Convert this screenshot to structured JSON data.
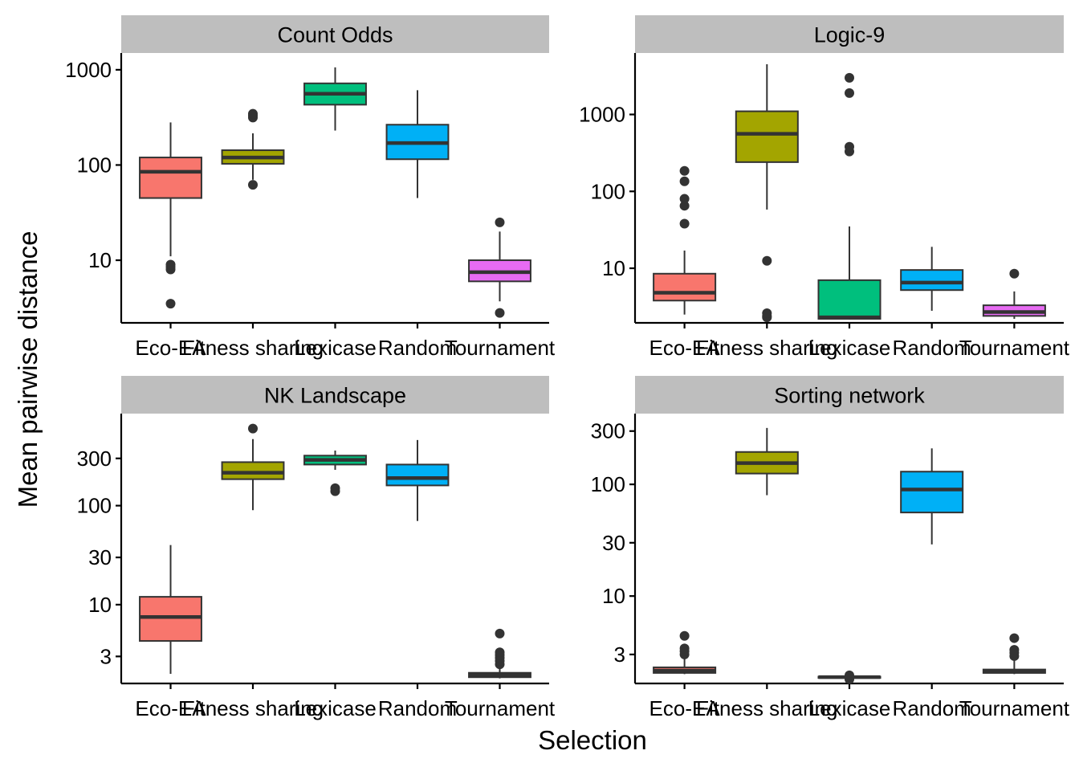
{
  "colors": {
    "Eco-EA": "#F8766D",
    "Fitness sharing": "#A3A500",
    "Lexicase": "#00BF7D",
    "Random": "#00B0F6",
    "Tournament": "#E76BF3"
  },
  "chart_data": {
    "type": "boxplot",
    "facet_layout": "2x2 grid",
    "xlabel": "Selection",
    "ylabel": "Mean pairwise distance",
    "y_scale": "log10",
    "categories": [
      "Eco-EA",
      "Fitness sharing",
      "Lexicase",
      "Random",
      "Tournament"
    ],
    "panels": [
      {
        "title": "Count Odds",
        "ylim": [
          2.2,
          1500
        ],
        "yticks": [
          10,
          100,
          1000
        ],
        "ytick_labels": [
          "10",
          "100",
          "1000"
        ],
        "boxes": [
          {
            "category": "Eco-EA",
            "whislo": 11,
            "q1": 45,
            "median": 85,
            "q3": 120,
            "whishi": 280,
            "outliers": [
              3.5,
              8,
              8.5,
              9
            ]
          },
          {
            "category": "Fitness sharing",
            "whislo": 70,
            "q1": 103,
            "median": 120,
            "q3": 143,
            "whishi": 215,
            "outliers": [
              62,
              315,
              330,
              345
            ]
          },
          {
            "category": "Lexicase",
            "whislo": 230,
            "q1": 430,
            "median": 560,
            "q3": 720,
            "whishi": 1060,
            "outliers": []
          },
          {
            "category": "Random",
            "whislo": 45,
            "q1": 115,
            "median": 170,
            "q3": 265,
            "whishi": 610,
            "outliers": []
          },
          {
            "category": "Tournament",
            "whislo": 3.7,
            "q1": 6,
            "median": 7.5,
            "q3": 10,
            "whishi": 20,
            "outliers": [
              2.8,
              25
            ]
          }
        ]
      },
      {
        "title": "Logic-9",
        "ylim": [
          1.95,
          6300
        ],
        "yticks": [
          10,
          100,
          1000
        ],
        "ytick_labels": [
          "10",
          "100",
          "1000"
        ],
        "boxes": [
          {
            "category": "Eco-EA",
            "whislo": 2.5,
            "q1": 3.8,
            "median": 4.8,
            "q3": 8.5,
            "whishi": 17,
            "outliers": [
              38,
              65,
              80,
              135,
              185
            ]
          },
          {
            "category": "Fitness sharing",
            "whislo": 58,
            "q1": 240,
            "median": 560,
            "q3": 1100,
            "whishi": 4500,
            "outliers": [
              12.5,
              2.3,
              2.4,
              2.6
            ]
          },
          {
            "category": "Lexicase",
            "whislo": 2.15,
            "q1": 2.2,
            "median": 2.3,
            "q3": 7,
            "whishi": 35,
            "outliers": [
              330,
              380,
              1900,
              3000
            ]
          },
          {
            "category": "Random",
            "whislo": 2.8,
            "q1": 5.2,
            "median": 6.5,
            "q3": 9.5,
            "whishi": 19,
            "outliers": []
          },
          {
            "category": "Tournament",
            "whislo": 2.2,
            "q1": 2.4,
            "median": 2.7,
            "q3": 3.3,
            "whishi": 5,
            "outliers": [
              8.5
            ]
          }
        ]
      },
      {
        "title": "NK Landscape",
        "ylim": [
          1.6,
          850
        ],
        "yticks": [
          3,
          10,
          30,
          100,
          300
        ],
        "ytick_labels": [
          "3",
          "10",
          "30",
          "100",
          "300"
        ],
        "boxes": [
          {
            "category": "Eco-EA",
            "whislo": 2,
            "q1": 4.3,
            "median": 7.5,
            "q3": 12,
            "whishi": 40,
            "outliers": []
          },
          {
            "category": "Fitness sharing",
            "whislo": 90,
            "q1": 185,
            "median": 215,
            "q3": 275,
            "whishi": 470,
            "outliers": [
              600
            ]
          },
          {
            "category": "Lexicase",
            "whislo": 230,
            "q1": 260,
            "median": 290,
            "q3": 320,
            "whishi": 360,
            "outliers": [
              140,
              150
            ]
          },
          {
            "category": "Random",
            "whislo": 70,
            "q1": 160,
            "median": 190,
            "q3": 260,
            "whishi": 460,
            "outliers": []
          },
          {
            "category": "Tournament",
            "whislo": 1.8,
            "q1": 1.85,
            "median": 1.95,
            "q3": 2.05,
            "whishi": 2.6,
            "outliers": [
              2.5,
              2.7,
              2.9,
              3.1,
              3.3,
              5.1
            ]
          }
        ]
      },
      {
        "title": "Sorting network",
        "ylim": [
          1.65,
          430
        ],
        "yticks": [
          3,
          10,
          30,
          100,
          300
        ],
        "ytick_labels": [
          "3",
          "10",
          "30",
          "100",
          "300"
        ],
        "boxes": [
          {
            "category": "Eco-EA",
            "whislo": 2,
            "q1": 2.05,
            "median": 2.15,
            "q3": 2.3,
            "whishi": 2.9,
            "outliers": [
              3,
              3.2,
              3.4,
              4.4
            ]
          },
          {
            "category": "Fitness sharing",
            "whislo": 80,
            "q1": 125,
            "median": 155,
            "q3": 195,
            "whishi": 320,
            "outliers": []
          },
          {
            "category": "Lexicase",
            "whislo": 1.85,
            "q1": 1.85,
            "median": 1.88,
            "q3": 1.9,
            "whishi": 1.9,
            "outliers": [
              1.8,
              1.95
            ]
          },
          {
            "category": "Random",
            "whislo": 29,
            "q1": 56,
            "median": 90,
            "q3": 130,
            "whishi": 210,
            "outliers": []
          },
          {
            "category": "Tournament",
            "whislo": 2,
            "q1": 2.05,
            "median": 2.1,
            "q3": 2.2,
            "whishi": 2.8,
            "outliers": [
              2.9,
              3.1,
              3.3,
              4.2
            ]
          }
        ]
      }
    ]
  }
}
